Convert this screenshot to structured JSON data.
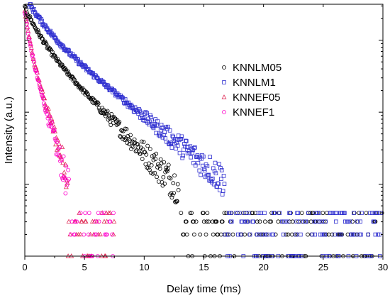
{
  "chart_data": {
    "type": "scatter",
    "title": "",
    "xlabel": "Delay time (ms)",
    "ylabel": "Intensity (a.u.)",
    "xlim": [
      0,
      30
    ],
    "x_ticks": [
      0,
      5,
      10,
      15,
      20,
      25,
      30
    ],
    "y_scale": "log",
    "ylim_decades": [
      0,
      3.5
    ],
    "y_tick_labels_shown": false,
    "grid": false,
    "legend_position": "upper-right",
    "series": [
      {
        "name": "KNNLM05",
        "marker": "circle",
        "color": "#000000",
        "tau_ms": 2.6,
        "y0_decades": 3.45,
        "tail_ms": 30,
        "noise_floor_decades": 0.35
      },
      {
        "name": "KNNLM1",
        "marker": "square",
        "color": "#2f2fd0",
        "tau_ms": 3.3,
        "y0_decades": 3.6,
        "tail_ms": 30,
        "noise_floor_decades": 0.45
      },
      {
        "name": "KNNEF05",
        "marker": "triangle",
        "color": "#e0305a",
        "tau_ms": 0.8,
        "y0_decades": 3.4,
        "tail_ms": 7.5,
        "noise_floor_decades": 0.5
      },
      {
        "name": "KNNEF1",
        "marker": "circle",
        "color": "#ff00cc",
        "tau_ms": 0.75,
        "y0_decades": 3.4,
        "tail_ms": 7.5,
        "noise_floor_decades": 0.3
      }
    ]
  }
}
